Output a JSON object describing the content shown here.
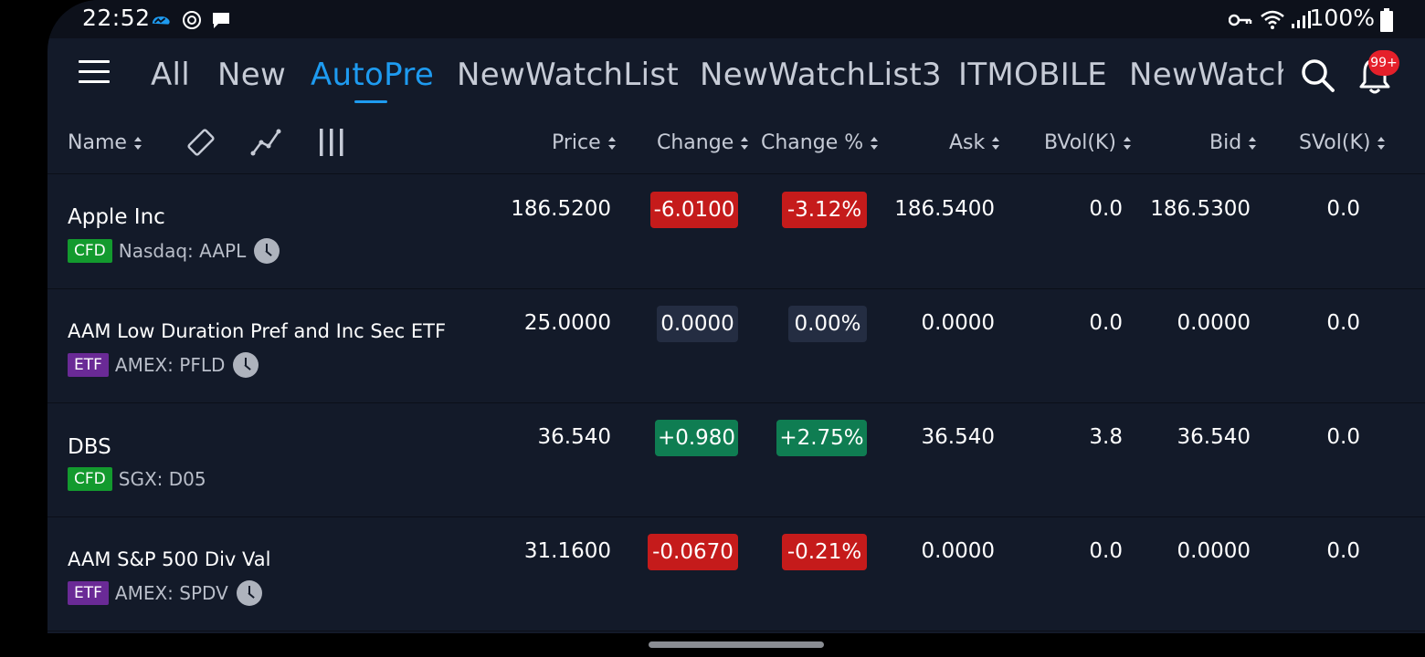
{
  "status_bar": {
    "time": "22:52",
    "battery": "100%"
  },
  "header": {
    "tabs": [
      "All",
      "New",
      "AutoPre",
      "NewWatchList",
      "NewWatchList3",
      "ITMOBILE",
      "NewWatch"
    ],
    "active_tab": "AutoPre",
    "notification_badge": "99+"
  },
  "columns": {
    "name": "Name",
    "price": "Price",
    "change": "Change",
    "change_pct": "Change %",
    "ask": "Ask",
    "bvol": "BVol(K)",
    "bid": "Bid",
    "svol": "SVol(K)"
  },
  "rows": [
    {
      "name": "Apple Inc",
      "badge": "CFD",
      "exchange": "Nasdaq: AAPL",
      "price": "186.5200",
      "change": "-6.0100",
      "change_pct": "-3.12%",
      "ask": "186.5400",
      "bvol": "0.0",
      "bid": "186.5300",
      "svol": "0.0"
    },
    {
      "name": "AAM Low Duration Pref and Inc Sec ETF",
      "badge": "ETF",
      "exchange": "AMEX: PFLD",
      "price": "25.0000",
      "change": "0.0000",
      "change_pct": "0.00%",
      "ask": "0.0000",
      "bvol": "0.0",
      "bid": "0.0000",
      "svol": "0.0"
    },
    {
      "name": "DBS",
      "badge": "CFD",
      "exchange": "SGX: D05",
      "price": "36.540",
      "change": "+0.980",
      "change_pct": "+2.75%",
      "ask": "36.540",
      "bvol": "3.8",
      "bid": "36.540",
      "svol": "0.0"
    },
    {
      "name": "AAM S&P 500 Div Val",
      "badge": "ETF",
      "exchange": "AMEX: SPDV",
      "price": "31.1600",
      "change": "-0.0670",
      "change_pct": "-0.21%",
      "ask": "0.0000",
      "bvol": "0.0",
      "bid": "0.0000",
      "svol": "0.0"
    }
  ],
  "colors": {
    "accent": "#1e9bf0",
    "negative": "#c51b1b",
    "positive": "#0f7d52",
    "neutral": "#242d42",
    "cfd_badge": "#139a2e",
    "etf_badge": "#6a2a96",
    "background": "#131a29"
  },
  "icons": [
    "menu-icon",
    "search-icon",
    "bell-icon",
    "rotate-icon",
    "chart-line-icon",
    "column-bars-icon",
    "clock-icon",
    "key-icon",
    "wifi-icon",
    "signal-icon",
    "battery-icon"
  ]
}
